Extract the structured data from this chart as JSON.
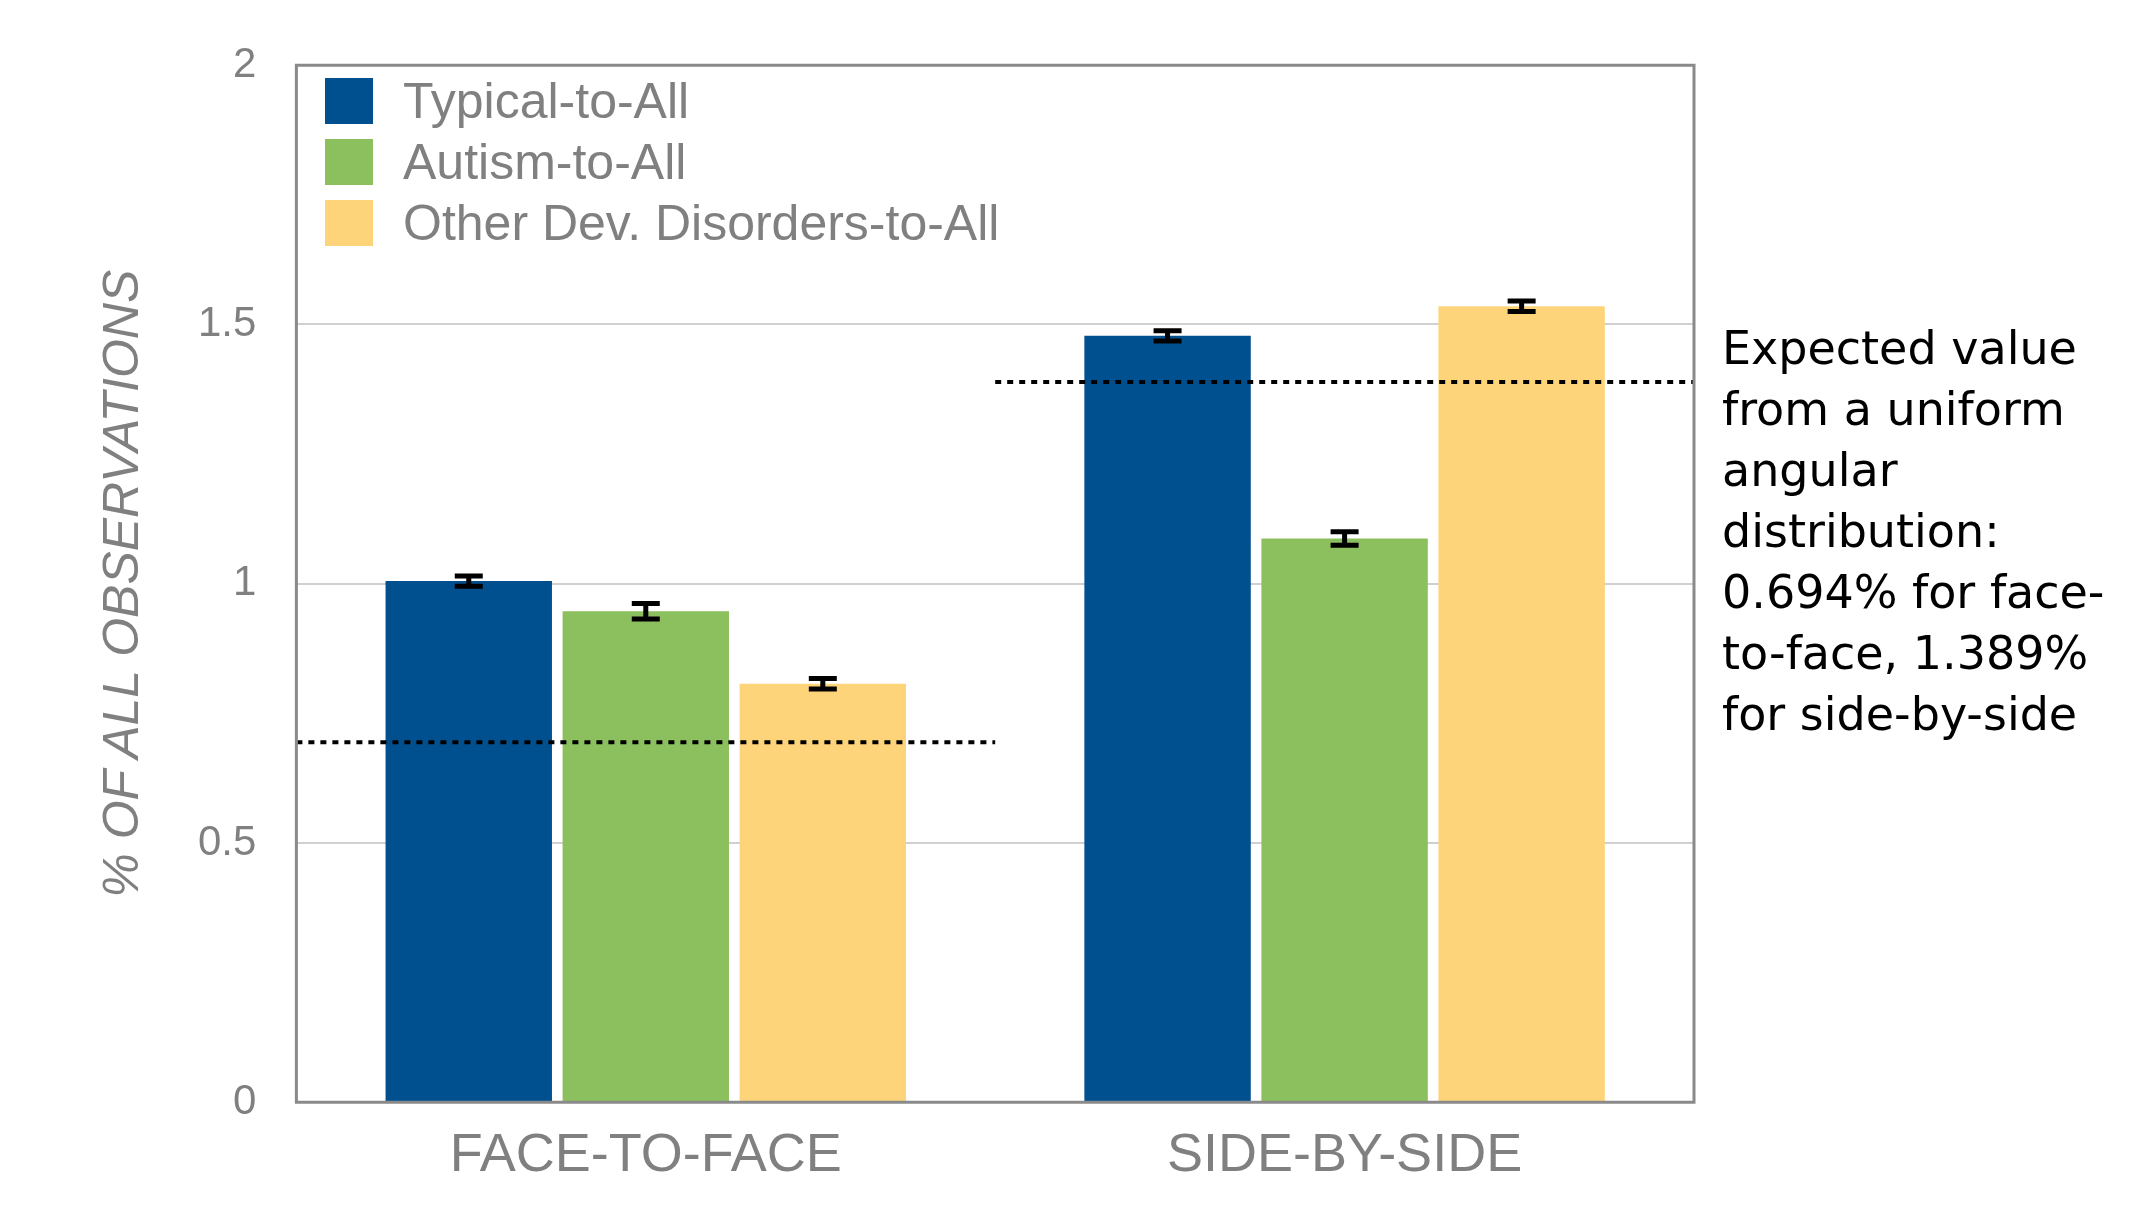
{
  "chart_data": {
    "type": "bar",
    "ylabel": "% OF ALL OBSERVATIONS",
    "categories": [
      "FACE-TO-FACE",
      "SIDE-BY-SIDE"
    ],
    "series": [
      {
        "name": "Typical-to-All",
        "color": "#00508f",
        "values": [
          1.005,
          1.478
        ],
        "errors": [
          0.01,
          0.01
        ]
      },
      {
        "name": "Autism-to-All",
        "color": "#8cbf5e",
        "values": [
          0.947,
          1.087
        ],
        "errors": [
          0.015,
          0.013
        ]
      },
      {
        "name": "Other Dev. Disorders-to-All",
        "color": "#fed47a",
        "values": [
          0.807,
          1.535
        ],
        "errors": [
          0.01,
          0.01
        ]
      }
    ],
    "ylim": [
      0,
      2
    ],
    "yticks": [
      0,
      0.5,
      1,
      1.5,
      2
    ],
    "grid": "y",
    "legend": "top left",
    "ref_lines": [
      {
        "axis": "y",
        "value": 0.694,
        "line_style": "dotted",
        "color": "#000000"
      },
      {
        "axis": "y",
        "value": 1.389,
        "line_style": "dotted",
        "color": "#000000"
      }
    ],
    "annotations": [
      "Expected value from a uniform angular distribution: 0.694% for face-to-face, 1.389% for side-by-side"
    ]
  }
}
